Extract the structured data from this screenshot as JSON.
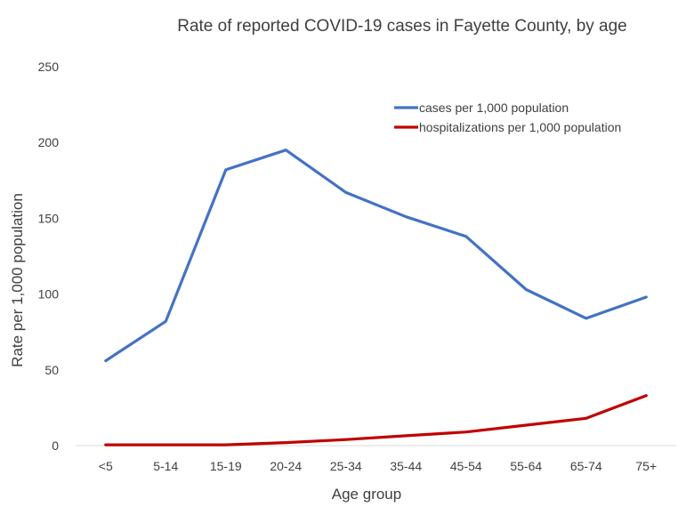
{
  "chart_data": {
    "type": "line",
    "title": "Rate of reported COVID-19 cases in Fayette County, by age",
    "xlabel": "Age group",
    "ylabel": "Rate per 1,000 population",
    "categories": [
      "<5",
      "5-14",
      "15-19",
      "20-24",
      "25-34",
      "35-44",
      "45-54",
      "55-64",
      "65-74",
      "75+"
    ],
    "yticks": [
      "0",
      "50",
      "100",
      "150",
      "200",
      "250"
    ],
    "ylim": [
      0,
      250
    ],
    "grid": false,
    "legend_position": "top-right",
    "series": [
      {
        "name": "cases per 1,000 population",
        "color": "#4472c4",
        "values": [
          56,
          82,
          182,
          195,
          167,
          151,
          138,
          103,
          84,
          98
        ]
      },
      {
        "name": "hospitalizations per 1,000 population",
        "color": "#c00000",
        "values": [
          0.5,
          0.5,
          0.5,
          2,
          4,
          6.5,
          9,
          13.5,
          18,
          33
        ]
      }
    ]
  }
}
